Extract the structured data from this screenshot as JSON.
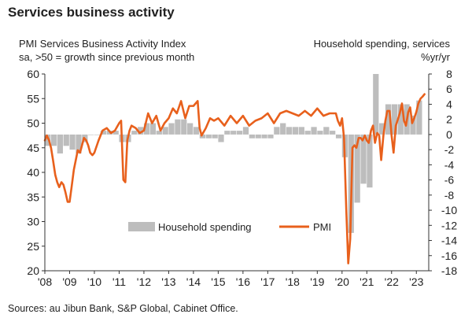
{
  "header": {
    "title": "Services business activity",
    "left_axis_note_1": "PMI Services Business Activity Index",
    "left_axis_note_2": "sa, >50 = growth since previous month",
    "right_axis_note_1": "Household spending, services",
    "right_axis_note_2": "%yr/yr"
  },
  "footer": {
    "source": "Sources: au Jibun Bank, S&P Global, Cabinet Office."
  },
  "colors": {
    "pmi_line": "#e8601c",
    "spending_bars": "#bdbdbd",
    "axis": "#333333"
  },
  "chart_data": {
    "type": "line",
    "title": "Services business activity",
    "x_tick_labels": [
      "'08",
      "'09",
      "'10",
      "'11",
      "'12",
      "'13",
      "'14",
      "'15",
      "'16",
      "'17",
      "'18",
      "'19",
      "'20",
      "'21",
      "'22",
      "'23"
    ],
    "x_range": [
      2008.0,
      2023.5
    ],
    "left_axis": {
      "ylim": [
        20,
        60
      ],
      "ticks": [
        20,
        25,
        30,
        35,
        40,
        45,
        50,
        55,
        60
      ]
    },
    "right_axis": {
      "ylim": [
        -18,
        8
      ],
      "ticks": [
        -18,
        -16,
        -14,
        -12,
        -10,
        -8,
        -6,
        -4,
        -2,
        0,
        2,
        4,
        6,
        8
      ]
    },
    "legend": {
      "placement": "bottom-center",
      "items": [
        "Household spending",
        "PMI"
      ]
    },
    "series": [
      {
        "name": "PMI",
        "axis": "left",
        "type": "line",
        "x": [
          2008.0,
          2008.08,
          2008.17,
          2008.25,
          2008.33,
          2008.42,
          2008.5,
          2008.58,
          2008.67,
          2008.75,
          2008.83,
          2008.92,
          2009.0,
          2009.08,
          2009.17,
          2009.25,
          2009.33,
          2009.42,
          2009.5,
          2009.58,
          2009.67,
          2009.75,
          2009.83,
          2009.92,
          2010.0,
          2010.17,
          2010.33,
          2010.5,
          2010.67,
          2010.83,
          2011.0,
          2011.08,
          2011.17,
          2011.25,
          2011.33,
          2011.42,
          2011.5,
          2011.67,
          2011.83,
          2012.0,
          2012.17,
          2012.33,
          2012.5,
          2012.67,
          2012.83,
          2013.0,
          2013.17,
          2013.33,
          2013.5,
          2013.67,
          2013.83,
          2014.0,
          2014.17,
          2014.25,
          2014.33,
          2014.5,
          2014.67,
          2014.83,
          2015.0,
          2015.25,
          2015.5,
          2015.75,
          2016.0,
          2016.25,
          2016.5,
          2016.75,
          2017.0,
          2017.25,
          2017.5,
          2017.75,
          2018.0,
          2018.25,
          2018.5,
          2018.75,
          2019.0,
          2019.25,
          2019.5,
          2019.75,
          2019.83,
          2019.92,
          2020.0,
          2020.08,
          2020.17,
          2020.25,
          2020.33,
          2020.42,
          2020.5,
          2020.58,
          2020.67,
          2020.75,
          2020.83,
          2020.92,
          2021.0,
          2021.08,
          2021.17,
          2021.25,
          2021.33,
          2021.42,
          2021.5,
          2021.58,
          2021.67,
          2021.75,
          2021.83,
          2021.92,
          2022.0,
          2022.08,
          2022.17,
          2022.25,
          2022.33,
          2022.42,
          2022.5,
          2022.58,
          2022.67,
          2022.75,
          2022.83,
          2022.92,
          2023.0,
          2023.08,
          2023.17,
          2023.25,
          2023.33
        ],
        "values": [
          46.5,
          47.5,
          46.5,
          45.0,
          42.5,
          39.5,
          38.0,
          37.0,
          38.0,
          37.5,
          36.0,
          34.0,
          34.0,
          37.0,
          40.5,
          42.5,
          44.5,
          44.0,
          45.5,
          47.0,
          46.5,
          45.5,
          44.0,
          43.5,
          44.0,
          46.5,
          48.5,
          49.0,
          48.0,
          48.5,
          50.0,
          50.5,
          38.5,
          38.0,
          46.5,
          48.5,
          49.5,
          49.0,
          48.0,
          48.5,
          52.0,
          50.0,
          51.5,
          48.5,
          50.0,
          51.0,
          53.0,
          52.0,
          54.5,
          51.0,
          53.5,
          53.5,
          54.5,
          49.0,
          47.5,
          49.0,
          51.0,
          50.5,
          51.0,
          49.5,
          51.5,
          50.0,
          51.5,
          49.5,
          50.5,
          51.0,
          52.0,
          50.0,
          52.0,
          52.5,
          52.0,
          51.5,
          52.5,
          51.5,
          53.0,
          51.5,
          52.0,
          52.0,
          50.5,
          49.5,
          51.0,
          47.0,
          32.5,
          21.5,
          26.5,
          45.0,
          45.5,
          45.0,
          47.0,
          47.0,
          46.5,
          47.5,
          46.5,
          46.0,
          48.5,
          49.5,
          46.0,
          48.0,
          47.5,
          42.5,
          47.5,
          50.5,
          52.5,
          52.5,
          47.5,
          44.0,
          49.5,
          50.7,
          52.0,
          54.0,
          50.5,
          49.5,
          52.2,
          53.2,
          50.0,
          51.1,
          52.3,
          54.0,
          55.0,
          55.4,
          55.9
        ]
      },
      {
        "name": "Household spending",
        "axis": "right",
        "type": "bar",
        "x": [
          2008.0,
          2008.25,
          2008.5,
          2008.75,
          2009.0,
          2009.25,
          2009.5,
          2009.75,
          2010.0,
          2010.25,
          2010.5,
          2010.75,
          2011.0,
          2011.25,
          2011.5,
          2011.75,
          2012.0,
          2012.25,
          2012.5,
          2012.75,
          2013.0,
          2013.25,
          2013.5,
          2013.75,
          2014.0,
          2014.25,
          2014.5,
          2014.75,
          2015.0,
          2015.25,
          2015.5,
          2015.75,
          2016.0,
          2016.25,
          2016.5,
          2016.75,
          2017.0,
          2017.25,
          2017.5,
          2017.75,
          2018.0,
          2018.25,
          2018.5,
          2018.75,
          2019.0,
          2019.25,
          2019.5,
          2019.75,
          2020.0,
          2020.25,
          2020.5,
          2020.75,
          2021.0,
          2021.25,
          2021.5,
          2021.75,
          2022.0,
          2022.25,
          2022.5,
          2022.75,
          2023.0
        ],
        "values": [
          -1.5,
          -1.5,
          -2.5,
          -1.5,
          -2.0,
          -2.5,
          -1.0,
          0.0,
          0.0,
          0.5,
          0.5,
          0.5,
          -1.0,
          -1.0,
          0.5,
          1.0,
          1.5,
          1.5,
          0.5,
          1.0,
          1.5,
          2.0,
          2.0,
          1.5,
          1.0,
          -0.5,
          -0.5,
          -0.5,
          -1.0,
          0.5,
          0.5,
          0.5,
          1.0,
          -0.5,
          -0.5,
          -0.5,
          -0.5,
          1.0,
          1.5,
          1.0,
          1.0,
          1.0,
          0.5,
          1.0,
          0.5,
          1.0,
          0.5,
          -0.5,
          -3.0,
          -13.0,
          -9.0,
          -6.5,
          -7.0,
          8.0,
          1.5,
          4.0,
          4.0,
          4.0,
          4.0,
          2.5,
          4.5
        ]
      }
    ]
  }
}
